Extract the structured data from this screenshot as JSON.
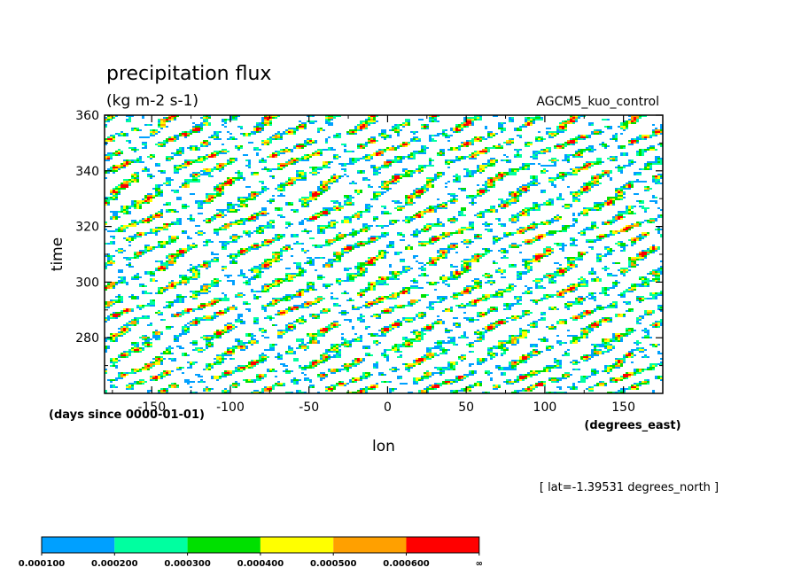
{
  "chart_data": {
    "type": "heatmap",
    "title": "precipitation flux",
    "units": "(kg m-2 s-1)",
    "dataset_label": "AGCM5_kuo_control",
    "xlabel": "lon",
    "x_units": "(degrees_east)",
    "ylabel": "time",
    "y_units": "(days since 0000-01-01)",
    "footnote": "[ lat=-1.39531 degrees_north ]",
    "xlim": [
      -180,
      175
    ],
    "ylim": [
      260,
      360
    ],
    "x_ticks": [
      -150,
      -100,
      -50,
      0,
      50,
      100,
      150
    ],
    "y_ticks": [
      280,
      300,
      320,
      340,
      360
    ],
    "x_tick_labels": [
      "-150",
      "-100",
      "-50",
      "0",
      "50",
      "100",
      "150"
    ],
    "y_tick_labels": [
      "280",
      "300",
      "320",
      "340",
      "360"
    ],
    "levels": [
      0.0001,
      0.0002,
      0.0003,
      0.0004,
      0.0005,
      0.0006
    ],
    "level_labels": [
      "0.000100",
      "0.000200",
      "0.000300",
      "0.000400",
      "0.000500",
      "0.000600",
      "∞"
    ],
    "colors": [
      "#00a0ff",
      "#00ffa0",
      "#00e000",
      "#ffff00",
      "#ffa000",
      "#ff0000"
    ],
    "background": "#ffffff"
  }
}
